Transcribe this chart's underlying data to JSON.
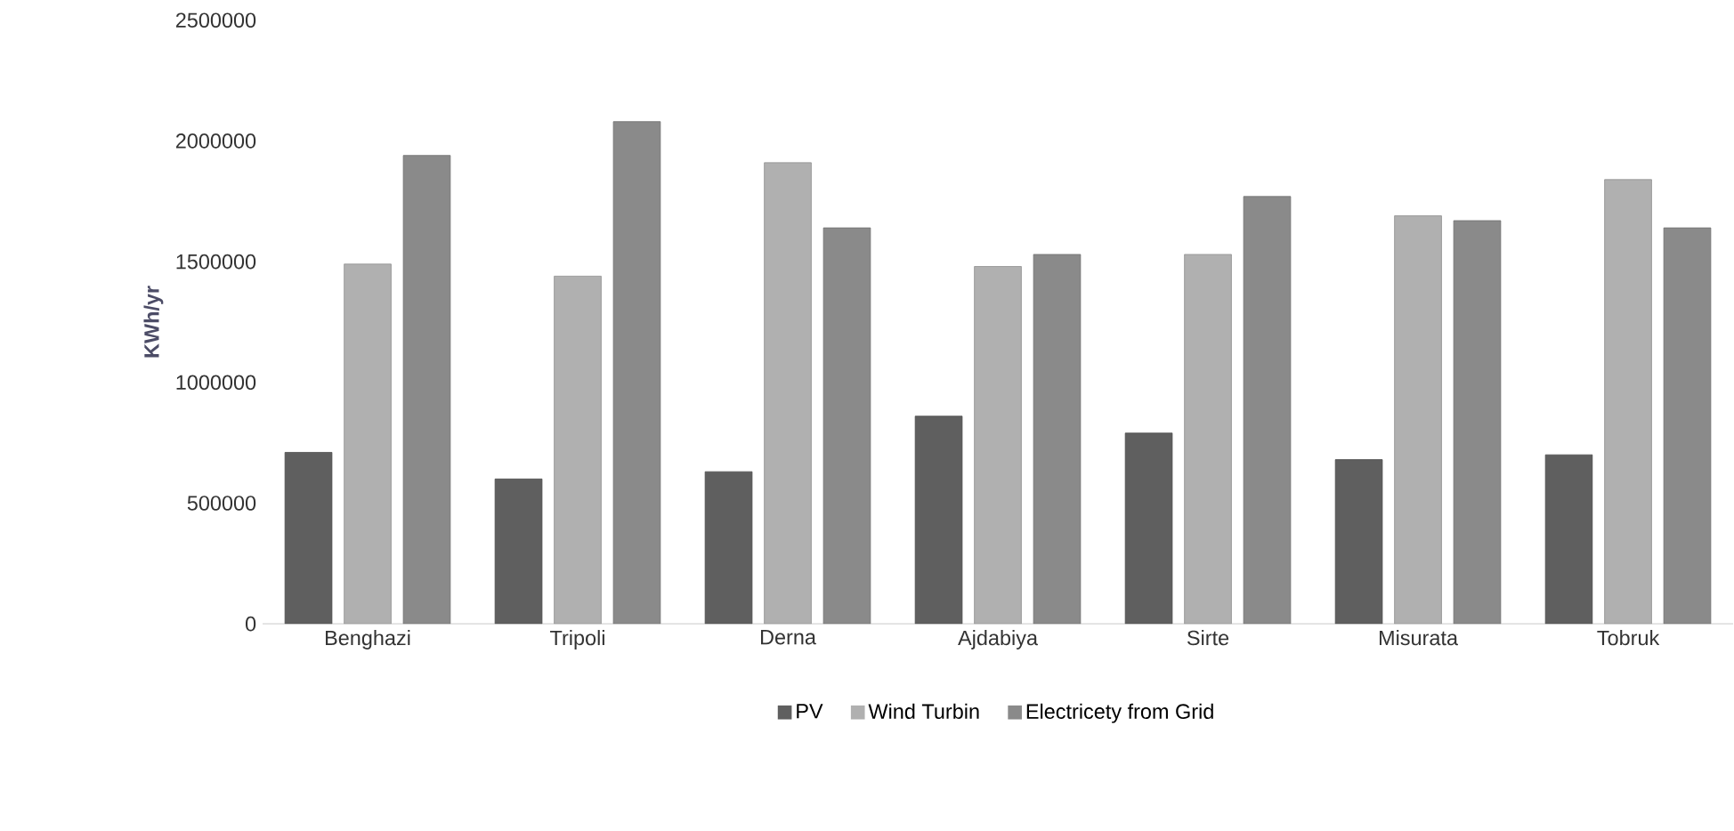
{
  "chart_data": {
    "type": "bar",
    "ylabel": "KWh/yr",
    "categories": [
      "Benghazi",
      "Tripoli",
      "Derna",
      "Ajdabiya",
      "Sirte",
      "Misurata",
      "Tobruk"
    ],
    "series": [
      {
        "name": "PV",
        "color": "#5f5f5f",
        "values": [
          710000,
          600000,
          630000,
          860000,
          790000,
          680000,
          700000
        ]
      },
      {
        "name": "Wind Turbin",
        "color": "#b0b0b0",
        "values": [
          1490000,
          1440000,
          1910000,
          1480000,
          1530000,
          1690000,
          1840000
        ]
      },
      {
        "name": "Electricety from Grid",
        "color": "#8a8a8a",
        "values": [
          1940000,
          2080000,
          1640000,
          1530000,
          1770000,
          1670000,
          1640000
        ]
      }
    ],
    "ylim": [
      0,
      2500000
    ],
    "yticks": [
      0,
      500000,
      1000000,
      1500000,
      2000000,
      2500000
    ],
    "grid": false,
    "legend": "bottom"
  }
}
